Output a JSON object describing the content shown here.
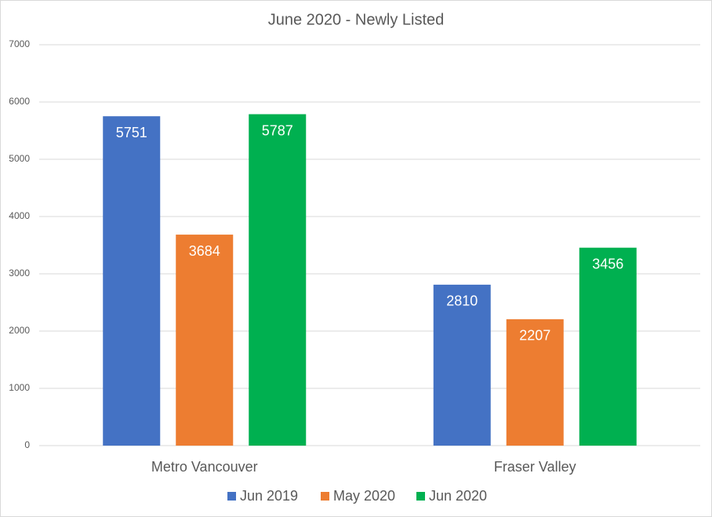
{
  "chart_data": {
    "type": "bar",
    "title": "June 2020 - Newly Listed",
    "categories": [
      "Metro Vancouver",
      "Fraser Valley"
    ],
    "series": [
      {
        "name": "Jun 2019",
        "color": "#4472c4",
        "values": [
          5751,
          2810
        ]
      },
      {
        "name": "May 2020",
        "color": "#ed7d31",
        "values": [
          3684,
          2207
        ]
      },
      {
        "name": "Jun 2020",
        "color": "#00b050",
        "values": [
          5787,
          3456
        ]
      }
    ],
    "ylim": [
      0,
      7000
    ],
    "yticks": [
      0,
      1000,
      2000,
      3000,
      4000,
      5000,
      6000,
      7000
    ],
    "grid": true,
    "legend": "bottom"
  }
}
